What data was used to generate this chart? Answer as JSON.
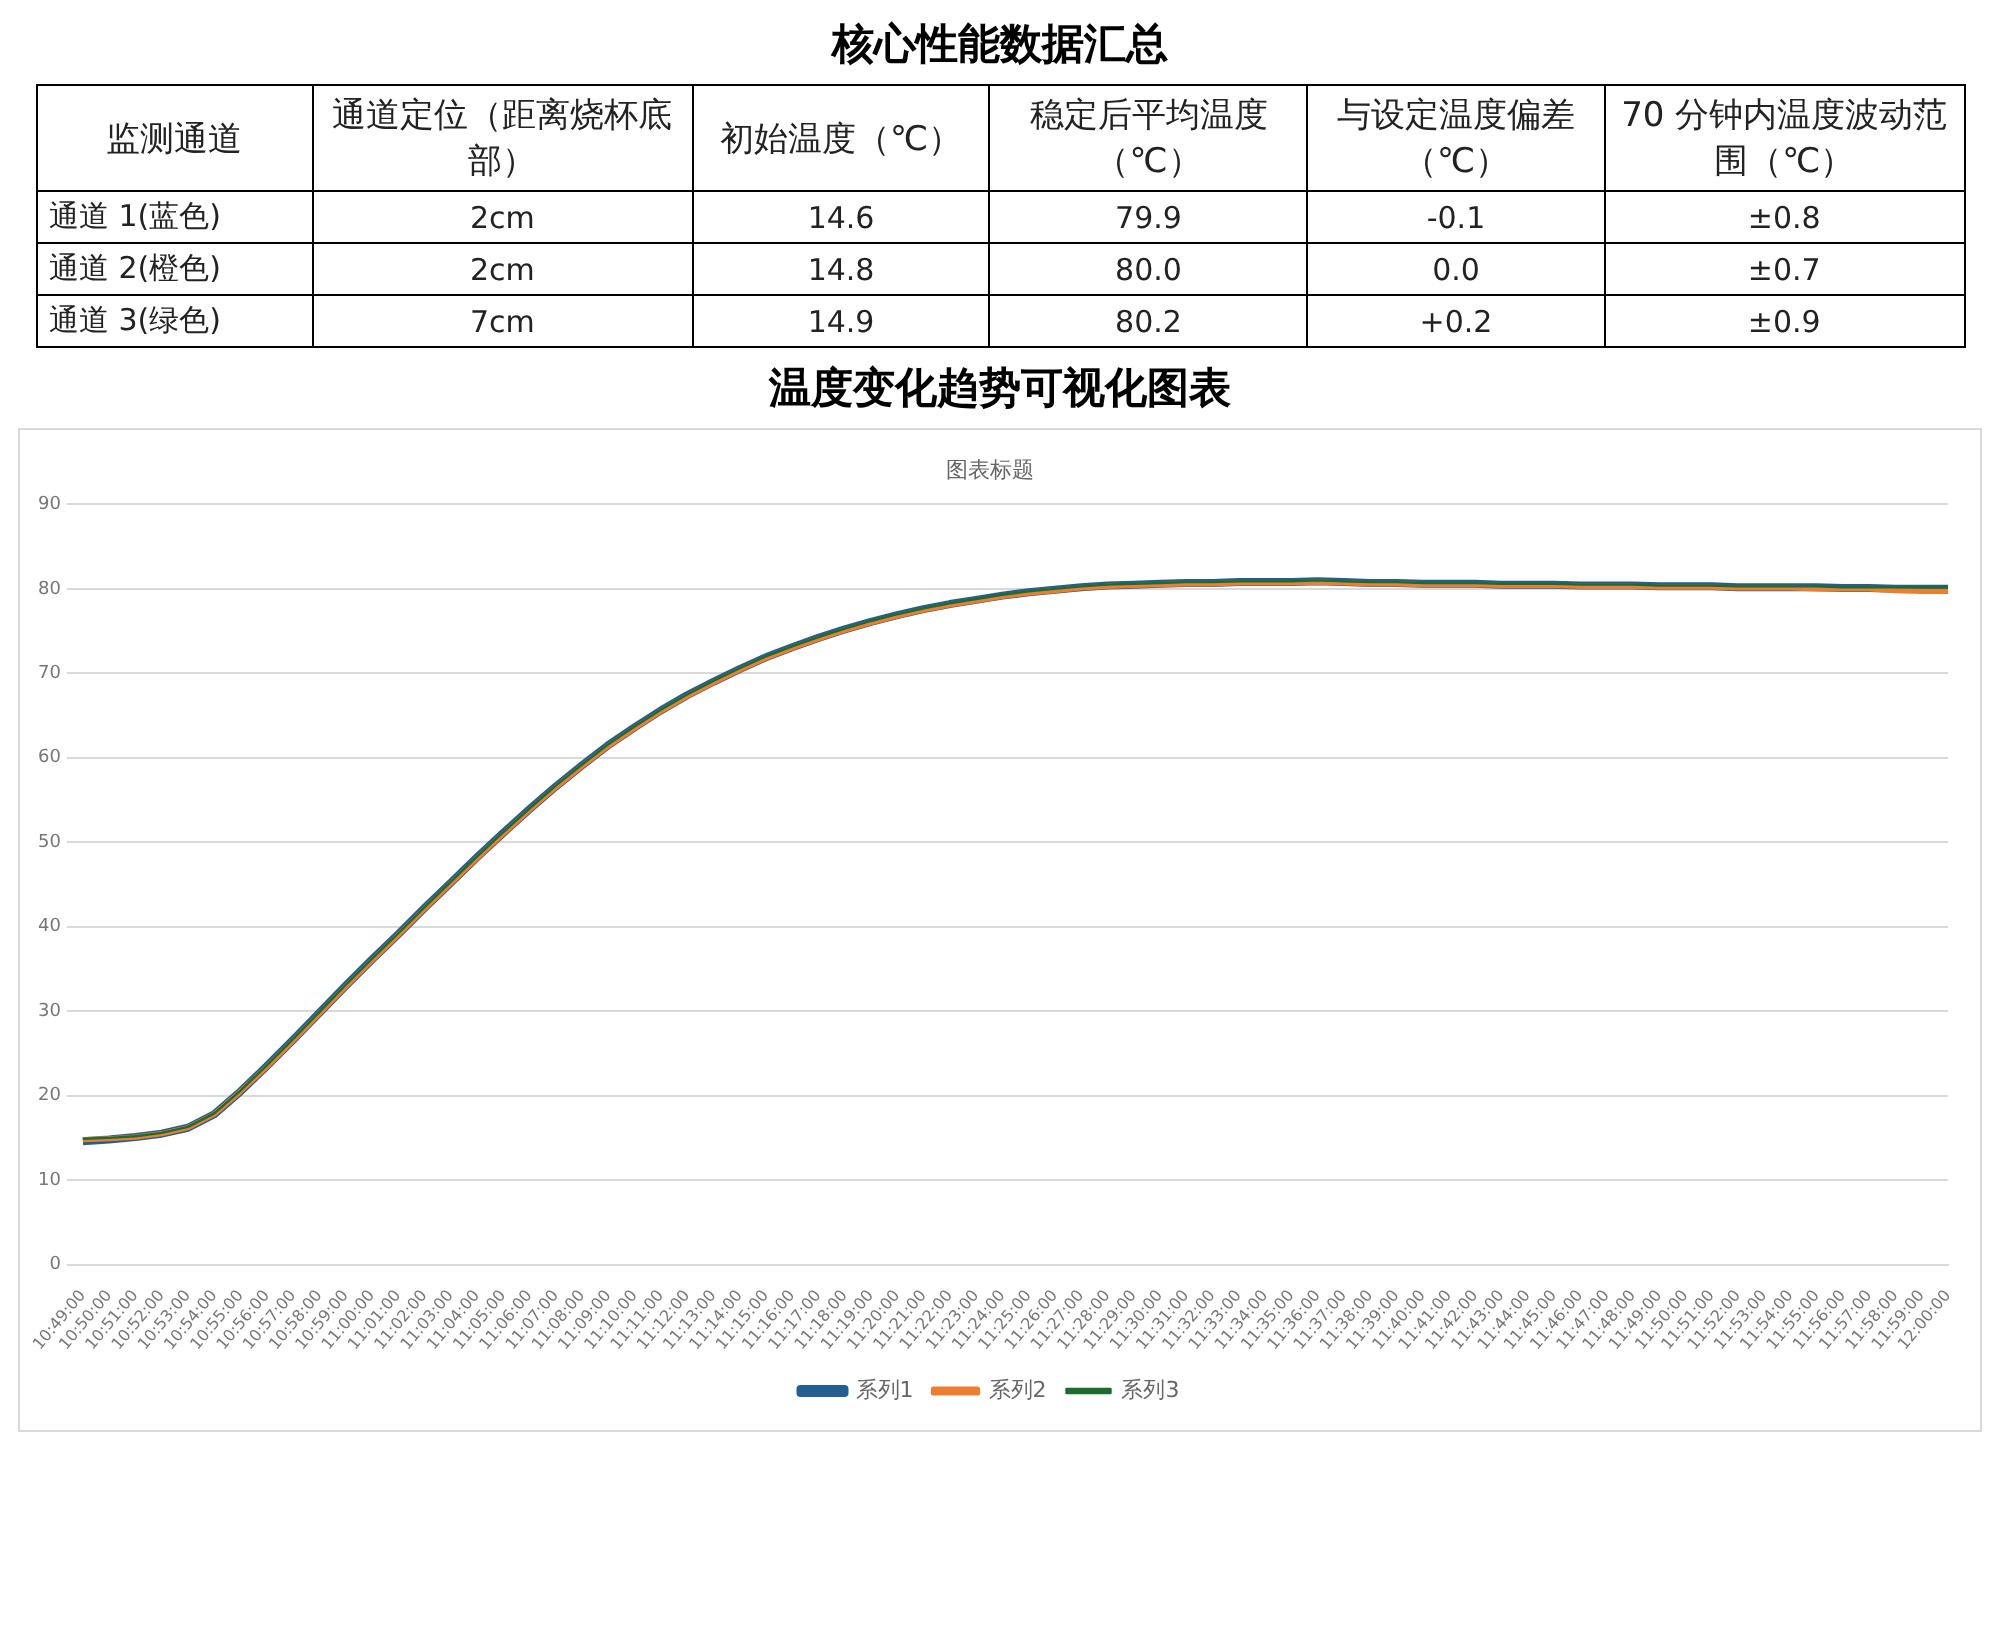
{
  "chart_data": [
    {
      "type": "other",
      "title": "核心性能数据汇总",
      "categories": [
        "监测通道",
        "通道定位（距离烧杯底部）",
        "初始温度（℃）",
        "稳定后平均温度（℃）",
        "与设定温度偏差（℃）",
        "70 分钟内温度波动范围（℃）"
      ],
      "cell_labels": [
        [
          "通道 1(蓝色)",
          "2cm",
          "14.6",
          "79.9",
          "-0.1",
          "±0.8"
        ],
        [
          "通道 2(橙色)",
          "2cm",
          "14.8",
          "80.0",
          "0.0",
          "±0.7"
        ],
        [
          "通道 3(绿色)",
          "7cm",
          "14.9",
          "80.2",
          "+0.2",
          "±0.9"
        ]
      ]
    },
    {
      "type": "line",
      "title": "温度变化趋势可视化图表",
      "subtitle": "图表标题",
      "categories": [
        "10:49:00",
        "10:50:00",
        "10:51:00",
        "10:52:00",
        "10:53:00",
        "10:54:00",
        "10:55:00",
        "10:56:00",
        "10:57:00",
        "10:58:00",
        "10:59:00",
        "11:00:00",
        "11:01:00",
        "11:02:00",
        "11:03:00",
        "11:04:00",
        "11:05:00",
        "11:06:00",
        "11:07:00",
        "11:08:00",
        "11:09:00",
        "11:10:00",
        "11:11:00",
        "11:12:00",
        "11:13:00",
        "11:14:00",
        "11:15:00",
        "11:16:00",
        "11:17:00",
        "11:18:00",
        "11:19:00",
        "11:20:00",
        "11:21:00",
        "11:22:00",
        "11:23:00",
        "11:24:00",
        "11:25:00",
        "11:26:00",
        "11:27:00",
        "11:28:00",
        "11:29:00",
        "11:30:00",
        "11:31:00",
        "11:32:00",
        "11:33:00",
        "11:34:00",
        "11:35:00",
        "11:36:00",
        "11:37:00",
        "11:38:00",
        "11:39:00",
        "11:40:00",
        "11:41:00",
        "11:42:00",
        "11:43:00",
        "11:44:00",
        "11:45:00",
        "11:46:00",
        "11:47:00",
        "11:48:00",
        "11:49:00",
        "11:50:00",
        "11:51:00",
        "11:52:00",
        "11:53:00",
        "11:54:00",
        "11:55:00",
        "11:56:00",
        "11:57:00",
        "11:58:00",
        "11:59:00",
        "12:00:00"
      ],
      "series": [
        {
          "name": "系列1",
          "color": "#255e91",
          "values": [
            14.6,
            14.8,
            15.1,
            15.5,
            16.2,
            17.8,
            20.5,
            23.5,
            26.6,
            29.8,
            33.0,
            36.1,
            39.1,
            42.2,
            45.2,
            48.2,
            51.1,
            53.9,
            56.6,
            59.1,
            61.5,
            63.6,
            65.6,
            67.4,
            69.0,
            70.5,
            71.9,
            73.1,
            74.2,
            75.2,
            76.1,
            76.9,
            77.6,
            78.2,
            78.7,
            79.2,
            79.6,
            79.9,
            80.2,
            80.4,
            80.5,
            80.6,
            80.7,
            80.7,
            80.8,
            80.8,
            80.8,
            80.9,
            80.8,
            80.7,
            80.7,
            80.6,
            80.6,
            80.6,
            80.5,
            80.5,
            80.5,
            80.4,
            80.4,
            80.4,
            80.3,
            80.3,
            80.3,
            80.2,
            80.2,
            80.2,
            80.2,
            80.1,
            80.1,
            80.0,
            80.0,
            80.0
          ]
        },
        {
          "name": "系列2",
          "color": "#ed7d31",
          "values": [
            14.8,
            14.9,
            15.1,
            15.5,
            16.2,
            17.8,
            20.5,
            23.4,
            26.5,
            29.7,
            32.9,
            36.0,
            39.0,
            42.1,
            45.1,
            48.1,
            51.0,
            53.8,
            56.5,
            59.0,
            61.4,
            63.5,
            65.5,
            67.3,
            68.9,
            70.4,
            71.8,
            73.0,
            74.1,
            75.1,
            76.0,
            76.8,
            77.5,
            78.1,
            78.6,
            79.1,
            79.5,
            79.8,
            80.1,
            80.3,
            80.4,
            80.5,
            80.6,
            80.6,
            80.7,
            80.7,
            80.7,
            80.8,
            80.7,
            80.6,
            80.6,
            80.5,
            80.5,
            80.5,
            80.4,
            80.4,
            80.4,
            80.3,
            80.3,
            80.3,
            80.2,
            80.2,
            80.2,
            80.1,
            80.1,
            80.1,
            80.0,
            80.0,
            80.0,
            79.8,
            79.7,
            79.7
          ]
        },
        {
          "name": "系列3",
          "color": "#1e6b2e",
          "values": [
            14.9,
            15.0,
            15.2,
            15.6,
            16.3,
            17.9,
            20.6,
            23.6,
            26.7,
            29.9,
            33.1,
            36.2,
            39.2,
            42.3,
            45.3,
            48.3,
            51.2,
            54.0,
            56.7,
            59.2,
            61.6,
            63.7,
            65.7,
            67.5,
            69.1,
            70.6,
            72.0,
            73.2,
            74.3,
            75.3,
            76.2,
            77.0,
            77.7,
            78.3,
            78.8,
            79.3,
            79.7,
            80.0,
            80.3,
            80.5,
            80.6,
            80.7,
            80.8,
            80.8,
            80.9,
            80.9,
            80.9,
            81.0,
            80.9,
            80.8,
            80.8,
            80.7,
            80.7,
            80.7,
            80.6,
            80.6,
            80.6,
            80.5,
            80.5,
            80.5,
            80.4,
            80.4,
            80.4,
            80.3,
            80.3,
            80.3,
            80.3,
            80.2,
            80.2,
            80.2,
            80.2,
            80.2
          ]
        }
      ],
      "ylim": [
        0,
        90
      ],
      "yticks": [
        0,
        10,
        20,
        30,
        40,
        50,
        60,
        70,
        80,
        90
      ],
      "grid": "y",
      "legend": "bottom",
      "marker": "none",
      "line_style": "solid"
    }
  ]
}
